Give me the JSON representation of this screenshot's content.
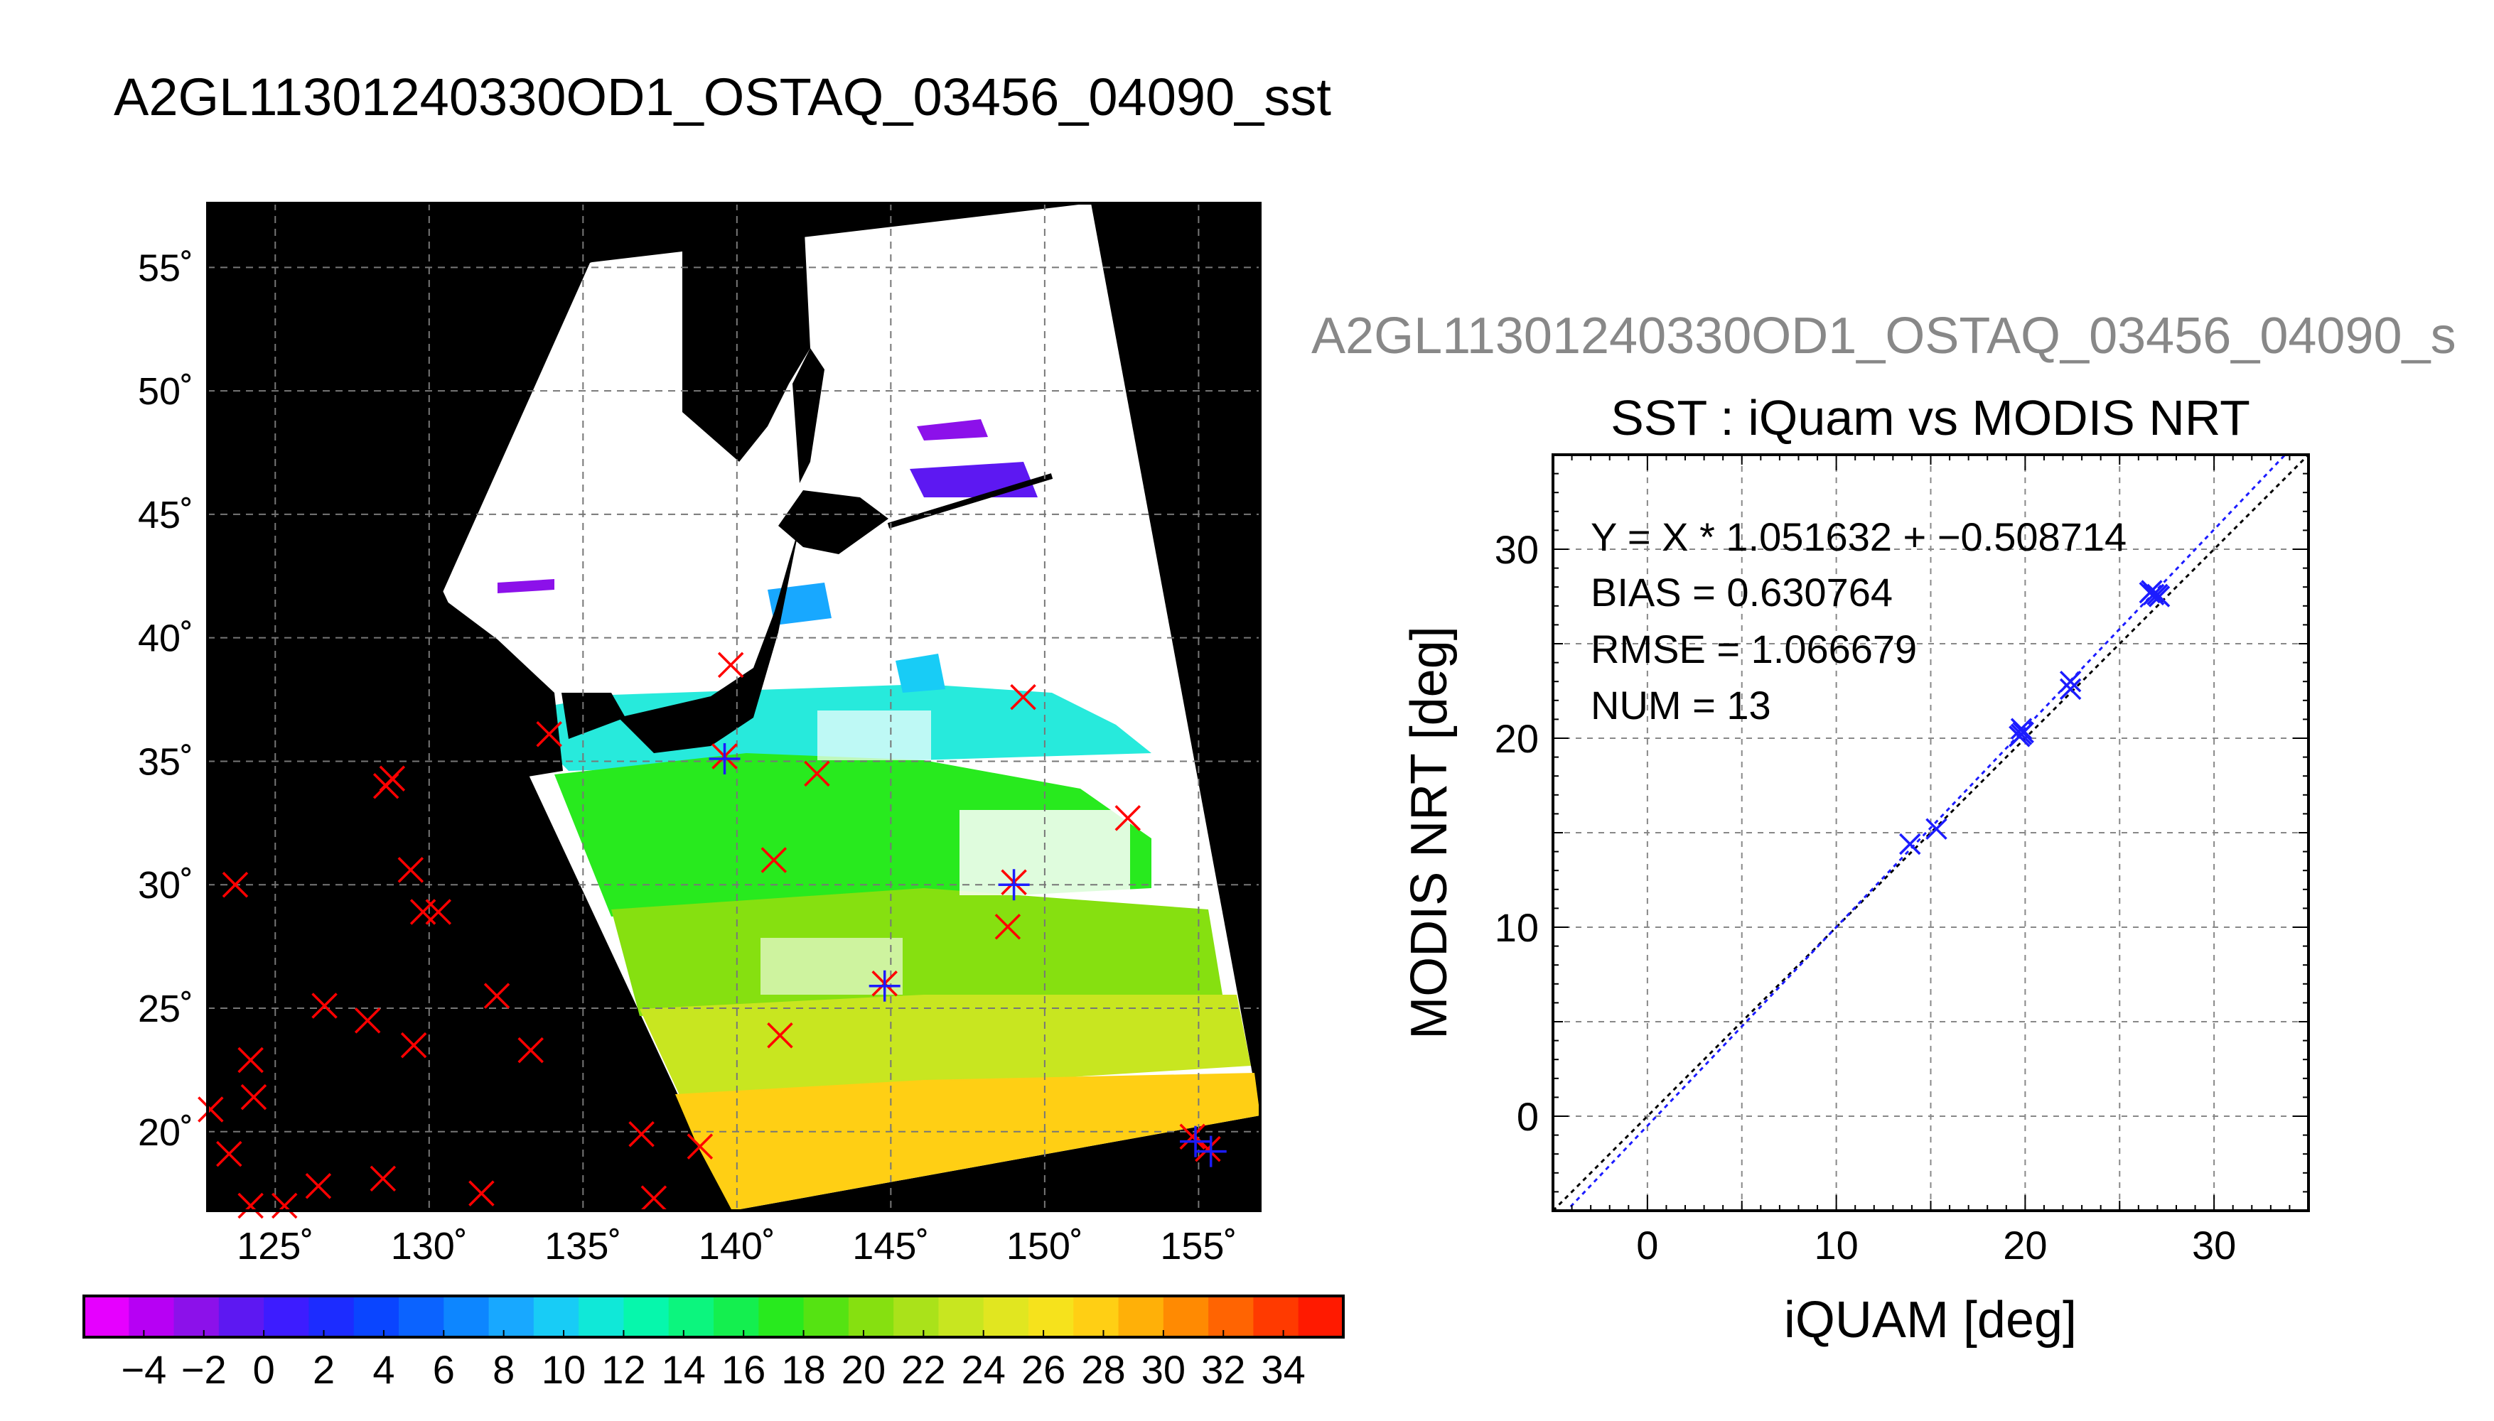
{
  "main_title": "A2GL11301240330OD1_OSTAQ_03456_04090_sst",
  "map": {
    "lon_ticks": [
      "125˚",
      "130˚",
      "135˚",
      "140˚",
      "145˚",
      "150˚",
      "155˚"
    ],
    "lat_ticks": [
      "55˚",
      "50˚",
      "45˚",
      "40˚",
      "35˚",
      "30˚",
      "25˚",
      "20˚"
    ],
    "lon_range": [
      122.8,
      157
    ],
    "lat_range": [
      16.8,
      57.6
    ]
  },
  "colorbar": {
    "ticks": [
      "−4",
      "−2",
      "0",
      "2",
      "4",
      "6",
      "8",
      "10",
      "12",
      "14",
      "16",
      "18",
      "20",
      "22",
      "24",
      "26",
      "28",
      "30",
      "32",
      "34"
    ],
    "colors": [
      "#e600ff",
      "#b700f4",
      "#8c11ea",
      "#5d18f2",
      "#3d1cff",
      "#1c2cff",
      "#0a45ff",
      "#0b63ff",
      "#0d86ff",
      "#18a8ff",
      "#18ccf6",
      "#10e8d8",
      "#06f7ac",
      "#0cf57e",
      "#14ef4f",
      "#28ea1e",
      "#55e312",
      "#86e010",
      "#aae21a",
      "#c8e620",
      "#e1e620",
      "#f6e21c",
      "#ffcf14",
      "#ffb008",
      "#ff8a02",
      "#ff6402",
      "#ff3a00",
      "#ff1a00"
    ]
  },
  "chart_title_clipped": "A2GL11301240330OD1_OSTAQ_03456_04090_s",
  "chart_data": [
    {
      "type": "scatter",
      "title": "SST : iQuam vs MODIS NRT",
      "xlabel": "iQUAM [deg]",
      "ylabel": "MODIS NRT [deg]",
      "xlim": [
        -5,
        35
      ],
      "ylim": [
        -5,
        35
      ],
      "xticks": [
        "0",
        "10",
        "20",
        "30"
      ],
      "yticks": [
        "0",
        "10",
        "20",
        "30"
      ],
      "grid": true,
      "annotations": [
        "Y = X * 1.051632 + −0.508714",
        "BIAS = 0.630764",
        "RMSE = 1.066679",
        "NUM = 13"
      ],
      "fit": {
        "slope": 1.051632,
        "intercept": -0.508714
      },
      "points": [
        [
          13.9,
          14.4
        ],
        [
          15.3,
          15.2
        ],
        [
          19.8,
          20.2
        ],
        [
          19.8,
          20.5
        ],
        [
          19.9,
          20.3
        ],
        [
          22.4,
          22.6
        ],
        [
          22.4,
          23.0
        ],
        [
          26.7,
          27.8
        ],
        [
          26.8,
          27.6
        ],
        [
          27.0,
          27.6
        ],
        [
          27.1,
          27.5
        ],
        [
          26.6,
          27.7
        ],
        [
          19.7,
          20.1
        ]
      ]
    },
    {
      "type": "scatter",
      "title": "",
      "series": [
        {
          "name": "",
          "color": "#ff0000",
          "points": [
            [
              123.7,
              30.0
            ],
            [
              124.2,
              22.9
            ],
            [
              124.3,
              21.4
            ],
            [
              122.9,
              20.9
            ],
            [
              123.5,
              19.1
            ],
            [
              124.2,
              17.0
            ],
            [
              125.3,
              17.0
            ],
            [
              126.4,
              17.8
            ],
            [
              126.6,
              25.1
            ],
            [
              128.0,
              24.5
            ],
            [
              128.5,
              18.1
            ],
            [
              128.6,
              34.0
            ],
            [
              128.8,
              34.3
            ],
            [
              129.4,
              30.6
            ],
            [
              129.5,
              23.5
            ],
            [
              129.8,
              28.9
            ],
            [
              130.3,
              28.9
            ],
            [
              131.7,
              17.5
            ],
            [
              132.2,
              25.5
            ],
            [
              133.3,
              23.3
            ],
            [
              133.9,
              36.1
            ],
            [
              136.9,
              19.9
            ],
            [
              137.3,
              17.3
            ],
            [
              138.8,
              19.4
            ],
            [
              139.6,
              35.2
            ],
            [
              139.8,
              38.9
            ],
            [
              141.2,
              31.0
            ],
            [
              141.4,
              23.9
            ],
            [
              142.6,
              34.5
            ],
            [
              144.8,
              26.0
            ],
            [
              148.8,
              28.3
            ],
            [
              149.0,
              30.1
            ],
            [
              149.3,
              37.6
            ],
            [
              152.7,
              32.7
            ],
            [
              154.8,
              19.8
            ],
            [
              155.3,
              19.3
            ]
          ]
        },
        {
          "name": "",
          "color": "#1c1cff",
          "points": [
            [
              139.6,
              35.1
            ],
            [
              149.0,
              30.0
            ],
            [
              144.8,
              25.9
            ],
            [
              154.9,
              19.6
            ],
            [
              155.4,
              19.2
            ]
          ]
        }
      ]
    }
  ]
}
